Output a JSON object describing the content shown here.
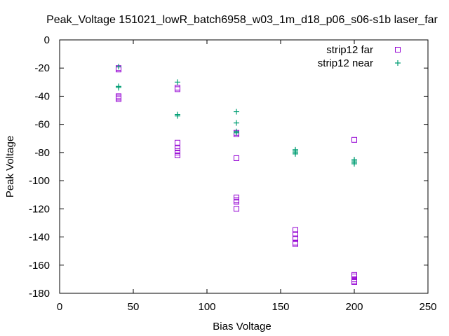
{
  "chart_data": {
    "type": "scatter",
    "title": "Peak_Voltage 151021_lowR_batch6958_w03_1m_d18_p06_s06-s1b laser_far",
    "xlabel": "Bias Voltage",
    "ylabel": "Peak Voltage",
    "xlim": [
      0,
      250
    ],
    "ylim": [
      -180,
      0
    ],
    "xticks": [
      0,
      50,
      100,
      150,
      200,
      250
    ],
    "yticks": [
      0,
      -20,
      -40,
      -60,
      -80,
      -100,
      -120,
      -140,
      -160,
      -180
    ],
    "grid": false,
    "legend_position": "top-right",
    "series": [
      {
        "name": "strip12 far",
        "marker": "square",
        "color": "#9400d3",
        "points": [
          [
            40,
            -20
          ],
          [
            40,
            -21
          ],
          [
            40,
            -40
          ],
          [
            40,
            -41
          ],
          [
            40,
            -42
          ],
          [
            80,
            -34
          ],
          [
            80,
            -35
          ],
          [
            80,
            -73
          ],
          [
            80,
            -77
          ],
          [
            80,
            -79
          ],
          [
            80,
            -80
          ],
          [
            80,
            -82
          ],
          [
            120,
            -66
          ],
          [
            120,
            -67
          ],
          [
            120,
            -84
          ],
          [
            120,
            -112
          ],
          [
            120,
            -114
          ],
          [
            120,
            -115
          ],
          [
            120,
            -120
          ],
          [
            160,
            -135
          ],
          [
            160,
            -138
          ],
          [
            160,
            -141
          ],
          [
            160,
            -144
          ],
          [
            160,
            -145
          ],
          [
            200,
            -71
          ],
          [
            200,
            -167
          ],
          [
            200,
            -168
          ],
          [
            200,
            -170
          ],
          [
            200,
            -171
          ],
          [
            200,
            -172
          ]
        ]
      },
      {
        "name": "strip12 near",
        "marker": "plus",
        "color": "#009e73",
        "points": [
          [
            40,
            -19
          ],
          [
            40,
            -33
          ],
          [
            40,
            -34
          ],
          [
            80,
            -30
          ],
          [
            80,
            -53
          ],
          [
            80,
            -54
          ],
          [
            120,
            -51
          ],
          [
            120,
            -59
          ],
          [
            120,
            -65
          ],
          [
            120,
            -66
          ],
          [
            160,
            -78
          ],
          [
            160,
            -79
          ],
          [
            160,
            -80
          ],
          [
            160,
            -81
          ],
          [
            200,
            -85
          ],
          [
            200,
            -86
          ],
          [
            200,
            -87
          ],
          [
            200,
            -88
          ]
        ]
      }
    ]
  }
}
